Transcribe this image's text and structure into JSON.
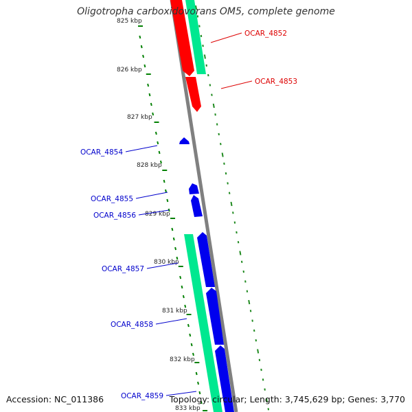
{
  "title": "Oligotropha carboxidovorans OM5, complete genome",
  "footer": {
    "accession": "Accession: NC_011386",
    "topology": "Topology: circular; Length: 3,745,629 bp; Genes: 3,770"
  },
  "colors": {
    "forward_cds": "#ff0000",
    "reverse_cds": "#0000ee",
    "rna": "#00e890",
    "backbone": "#808080",
    "tick": "#1f8a1f",
    "scale_tick": "#008000"
  },
  "scale_labels": [
    "825 kbp",
    "826 kbp",
    "827 kbp",
    "828 kbp",
    "829 kbp",
    "830 kbp",
    "831 kbp",
    "832 kbp",
    "833 kbp"
  ],
  "gene_labels": [
    {
      "name": "OCAR_4852",
      "color": "#dd0000"
    },
    {
      "name": "OCAR_4853",
      "color": "#dd0000"
    },
    {
      "name": "OCAR_4854",
      "color": "#0000cc"
    },
    {
      "name": "OCAR_4855",
      "color": "#0000cc"
    },
    {
      "name": "OCAR_4856",
      "color": "#0000cc"
    },
    {
      "name": "OCAR_4857",
      "color": "#0000cc"
    },
    {
      "name": "OCAR_4858",
      "color": "#0000cc"
    },
    {
      "name": "OCAR_4859",
      "color": "#0000cc"
    }
  ]
}
